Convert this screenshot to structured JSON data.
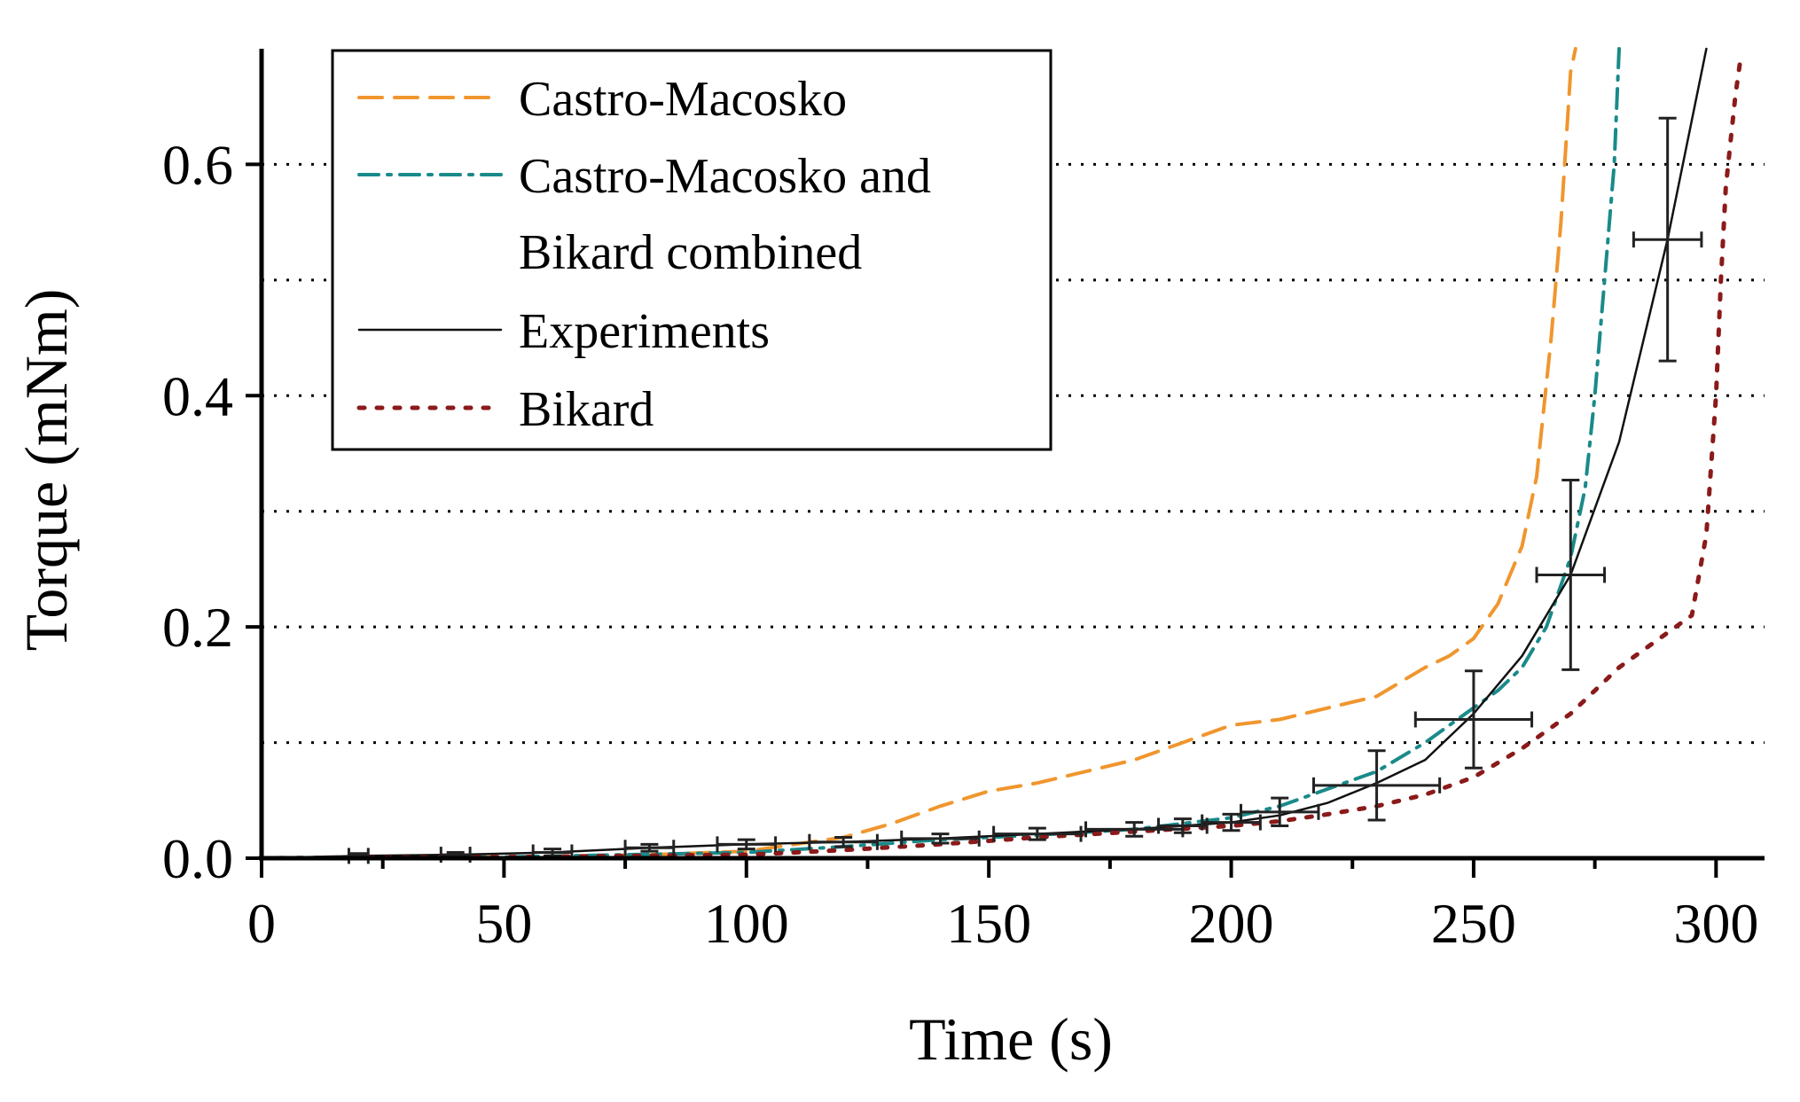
{
  "chart_data": {
    "type": "line",
    "xlabel": "Time (s)",
    "ylabel": "Torque (mNm)",
    "xlim": [
      0,
      310
    ],
    "ylim": [
      0,
      0.7
    ],
    "xticks": [
      0,
      50,
      100,
      150,
      200,
      250,
      300
    ],
    "xtick_labels": [
      "0",
      "50",
      "100",
      "150",
      "200",
      "250",
      "300"
    ],
    "yticks": [
      0.0,
      0.2,
      0.4,
      0.6
    ],
    "ytick_labels": [
      "0.0",
      "0.2",
      "0.4",
      "0.6"
    ],
    "gridlines_y": [
      0.1,
      0.2,
      0.3,
      0.4,
      0.5,
      0.6
    ],
    "grid": "dotted horizontal",
    "legend_position": "top-left",
    "legend": [
      {
        "label": "Castro-Macosko",
        "series": "Castro-Macosko"
      },
      {
        "label": "Castro-Macosko and",
        "series": "Castro-Macosko and Bikard combined"
      },
      {
        "label": "Bikard combined",
        "series": null
      },
      {
        "label": "Experiments",
        "series": "Experiments"
      },
      {
        "label": "Bikard",
        "series": "Bikard"
      }
    ],
    "series": [
      {
        "name": "Castro-Macosko",
        "color": "#f0962e",
        "dash": "dashed",
        "x": [
          0,
          50,
          80,
          100,
          110,
          120,
          130,
          140,
          150,
          160,
          170,
          180,
          190,
          200,
          210,
          220,
          230,
          240,
          245,
          250,
          255,
          260,
          263,
          266,
          268,
          270,
          271
        ],
        "y": [
          0,
          0.001,
          0.003,
          0.006,
          0.012,
          0.018,
          0.03,
          0.045,
          0.058,
          0.065,
          0.075,
          0.085,
          0.1,
          0.115,
          0.12,
          0.13,
          0.14,
          0.165,
          0.175,
          0.19,
          0.22,
          0.27,
          0.33,
          0.45,
          0.55,
          0.68,
          0.7
        ]
      },
      {
        "name": "Castro-Macosko and Bikard combined",
        "color": "#1a8a8a",
        "dash": "dash-dot",
        "x": [
          0,
          50,
          100,
          120,
          140,
          160,
          180,
          200,
          210,
          220,
          230,
          240,
          250,
          255,
          260,
          265,
          270,
          273,
          275,
          277,
          279,
          280
        ],
        "y": [
          0,
          0.001,
          0.005,
          0.01,
          0.016,
          0.02,
          0.025,
          0.035,
          0.045,
          0.06,
          0.075,
          0.1,
          0.13,
          0.145,
          0.165,
          0.2,
          0.26,
          0.32,
          0.4,
          0.5,
          0.6,
          0.7
        ]
      },
      {
        "name": "Experiments",
        "color": "#111111",
        "dash": "solid",
        "x": [
          0,
          20,
          40,
          60,
          80,
          100,
          120,
          140,
          160,
          180,
          200,
          210,
          220,
          230,
          240,
          250,
          260,
          270,
          280,
          290,
          298
        ],
        "y": [
          0,
          0.002,
          0.003,
          0.005,
          0.009,
          0.012,
          0.014,
          0.017,
          0.021,
          0.025,
          0.031,
          0.037,
          0.048,
          0.065,
          0.085,
          0.125,
          0.175,
          0.245,
          0.36,
          0.535,
          0.7
        ],
        "error_bars": [
          {
            "x": 20,
            "y": 0.002,
            "xerr": 2,
            "yerr": 0.002
          },
          {
            "x": 40,
            "y": 0.003,
            "xerr": 3,
            "yerr": 0.002
          },
          {
            "x": 60,
            "y": 0.005,
            "xerr": 4,
            "yerr": 0.003
          },
          {
            "x": 80,
            "y": 0.009,
            "xerr": 5,
            "yerr": 0.003
          },
          {
            "x": 100,
            "y": 0.012,
            "xerr": 6,
            "yerr": 0.004
          },
          {
            "x": 120,
            "y": 0.014,
            "xerr": 7,
            "yerr": 0.004
          },
          {
            "x": 140,
            "y": 0.017,
            "xerr": 8,
            "yerr": 0.004
          },
          {
            "x": 160,
            "y": 0.021,
            "xerr": 9,
            "yerr": 0.005
          },
          {
            "x": 180,
            "y": 0.025,
            "xerr": 10,
            "yerr": 0.006
          },
          {
            "x": 190,
            "y": 0.028,
            "xerr": 5,
            "yerr": 0.006
          },
          {
            "x": 200,
            "y": 0.031,
            "xerr": 6,
            "yerr": 0.007
          },
          {
            "x": 210,
            "y": 0.04,
            "xerr": 8,
            "yerr": 0.012
          },
          {
            "x": 230,
            "y": 0.063,
            "xerr": 13,
            "yerr": 0.03
          },
          {
            "x": 250,
            "y": 0.12,
            "xerr": 12,
            "yerr": 0.042
          },
          {
            "x": 270,
            "y": 0.245,
            "xerr": 7,
            "yerr": 0.082
          },
          {
            "x": 290,
            "y": 0.535,
            "xerr": 7,
            "yerr": 0.105
          }
        ]
      },
      {
        "name": "Bikard",
        "color": "#8b1a1a",
        "dash": "dotted",
        "x": [
          0,
          50,
          100,
          120,
          140,
          160,
          180,
          200,
          210,
          220,
          230,
          240,
          250,
          260,
          270,
          280,
          290,
          295,
          298,
          300,
          301,
          302,
          303,
          304,
          305
        ],
        "y": [
          0,
          0.001,
          0.003,
          0.007,
          0.012,
          0.018,
          0.023,
          0.028,
          0.032,
          0.038,
          0.045,
          0.055,
          0.07,
          0.095,
          0.125,
          0.165,
          0.195,
          0.21,
          0.28,
          0.4,
          0.5,
          0.58,
          0.62,
          0.66,
          0.69
        ]
      }
    ]
  }
}
